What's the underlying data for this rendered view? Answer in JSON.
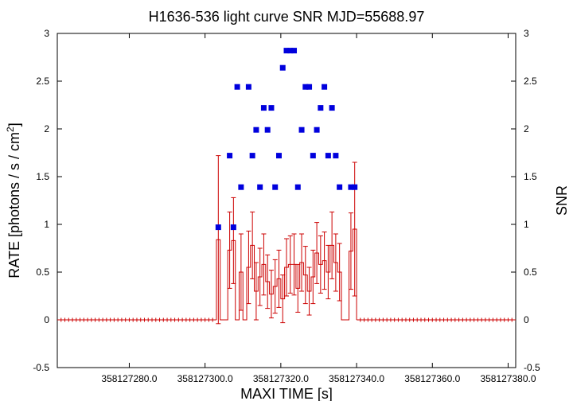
{
  "chart_data": {
    "type": "scatter",
    "title": "H1636-536 light curve  SNR MJD=55688.97",
    "xlabel": "MAXI TIME [s]",
    "ylabel_prefix": "RATE [photons / s / cm",
    "ylabel_sup": "2",
    "ylabel_suffix": "]",
    "y2label": "SNR",
    "xlim": [
      358127261.0,
      358127382.0
    ],
    "ylim": [
      -0.5,
      3.0
    ],
    "y2lim": [
      -0.5,
      3.0
    ],
    "x_ticks": [
      358127280.0,
      358127300.0,
      358127320.0,
      358127340.0,
      358127360.0,
      358127380.0
    ],
    "x_tick_labels": [
      "358127280.0",
      "358127300.0",
      "358127320.0",
      "358127340.0",
      "358127360.0",
      "358127380.0"
    ],
    "y_ticks": [
      -0.5,
      0,
      0.5,
      1,
      1.5,
      2,
      2.5,
      3
    ],
    "y_tick_labels": [
      "-0.5",
      "0",
      "0.5",
      "1",
      "1.5",
      "2",
      "2.5",
      "3"
    ],
    "y2_tick_labels": [
      "-0.5",
      "0",
      "0.5",
      "1",
      "1.5",
      "2",
      "2.5",
      "3"
    ],
    "grid": false,
    "series": [
      {
        "kind": "rate",
        "style": "histogram-with-errorbars",
        "color": "#cc0000",
        "x": [
          358127303.5,
          358127304.5,
          358127305.5,
          358127306.5,
          358127307.5,
          358127308.5,
          358127309.5,
          358127310.5,
          358127311.5,
          358127312.5,
          358127313.5,
          358127314.5,
          358127315.5,
          358127316.5,
          358127317.5,
          358127318.5,
          358127319.5,
          358127320.5,
          358127321.5,
          358127322.5,
          358127323.5,
          358127324.5,
          358127325.5,
          358127326.5,
          358127327.5,
          358127328.5,
          358127329.5,
          358127330.5,
          358127331.5,
          358127332.5,
          358127333.5,
          358127334.5,
          358127335.5,
          358127336.5,
          358127337.5,
          358127338.5,
          358127339.5
        ],
        "y": [
          0.84,
          0.0,
          0.0,
          0.73,
          0.83,
          0.0,
          0.5,
          0.0,
          0.55,
          0.78,
          0.3,
          0.45,
          0.58,
          0.4,
          0.27,
          0.35,
          0.43,
          0.22,
          0.55,
          0.58,
          0.58,
          0.33,
          0.6,
          0.47,
          0.3,
          0.45,
          0.7,
          0.58,
          0.62,
          0.5,
          0.78,
          0.6,
          0.5,
          0.0,
          0.0,
          0.72,
          0.95
        ],
        "yerr": [
          0.88,
          0.0,
          0.0,
          0.4,
          0.45,
          0.0,
          0.4,
          0.0,
          0.38,
          0.35,
          0.3,
          0.3,
          0.32,
          0.28,
          0.25,
          0.28,
          0.3,
          0.25,
          0.3,
          0.3,
          0.32,
          0.25,
          0.3,
          0.3,
          0.25,
          0.28,
          0.32,
          0.3,
          0.3,
          0.28,
          0.35,
          0.3,
          0.3,
          0.0,
          0.0,
          0.4,
          0.7
        ],
        "zero_x_start": 358127261.0,
        "zero_x_end": 358127382.0,
        "zero_step": 1.0,
        "active_range": [
          358127303.0,
          358127340.0
        ]
      },
      {
        "kind": "snr",
        "style": "markers",
        "color": "#0000dd",
        "x": [
          358127303.5,
          358127306.5,
          358127307.5,
          358127308.5,
          358127309.5,
          358127311.5,
          358127312.5,
          358127313.5,
          358127314.5,
          358127315.5,
          358127316.5,
          358127317.5,
          358127318.5,
          358127319.5,
          358127320.5,
          358127321.5,
          358127322.5,
          358127323.5,
          358127324.5,
          358127325.5,
          358127326.5,
          358127327.5,
          358127328.5,
          358127329.5,
          358127330.5,
          358127331.5,
          358127332.5,
          358127333.5,
          358127334.5,
          358127335.5,
          358127338.5,
          358127339.5
        ],
        "y": [
          0.97,
          1.72,
          0.97,
          2.44,
          1.39,
          2.44,
          1.72,
          1.99,
          1.39,
          2.22,
          1.99,
          2.22,
          1.39,
          1.72,
          2.64,
          2.82,
          2.82,
          2.82,
          1.39,
          1.99,
          2.44,
          2.44,
          1.72,
          1.99,
          2.22,
          2.44,
          1.72,
          2.22,
          1.72,
          1.39,
          1.39,
          1.39
        ]
      }
    ]
  }
}
